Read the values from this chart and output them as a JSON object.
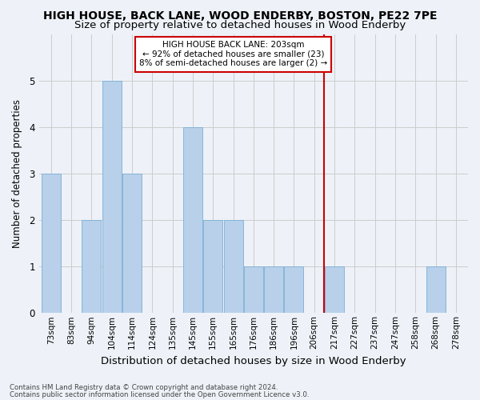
{
  "title": "HIGH HOUSE, BACK LANE, WOOD ENDERBY, BOSTON, PE22 7PE",
  "subtitle": "Size of property relative to detached houses in Wood Enderby",
  "xlabel": "Distribution of detached houses by size in Wood Enderby",
  "ylabel": "Number of detached properties",
  "footnote1": "Contains HM Land Registry data © Crown copyright and database right 2024.",
  "footnote2": "Contains public sector information licensed under the Open Government Licence v3.0.",
  "bins": [
    "73sqm",
    "83sqm",
    "94sqm",
    "104sqm",
    "114sqm",
    "124sqm",
    "135sqm",
    "145sqm",
    "155sqm",
    "165sqm",
    "176sqm",
    "186sqm",
    "196sqm",
    "206sqm",
    "217sqm",
    "227sqm",
    "237sqm",
    "247sqm",
    "258sqm",
    "268sqm",
    "278sqm"
  ],
  "counts": [
    3,
    0,
    2,
    5,
    3,
    0,
    0,
    4,
    2,
    2,
    1,
    1,
    1,
    0,
    1,
    0,
    0,
    0,
    0,
    1,
    0
  ],
  "bar_color": "#b8d0ea",
  "bar_edge_color": "#7aafd4",
  "vline_bin_index": 13,
  "vline_color": "#cc0000",
  "annotation_text": "HIGH HOUSE BACK LANE: 203sqm\n← 92% of detached houses are smaller (23)\n8% of semi-detached houses are larger (2) →",
  "annotation_box_color": "#ffffff",
  "annotation_box_edge": "#cc0000",
  "ylim": [
    0,
    6
  ],
  "yticks": [
    0,
    1,
    2,
    3,
    4,
    5,
    6
  ],
  "grid_color": "#cccccc",
  "bg_color": "#eef2f8",
  "title_fontsize": 10,
  "subtitle_fontsize": 9.5,
  "axis_label_fontsize": 9,
  "tick_fontsize": 7.5,
  "annotation_fontsize": 7.5,
  "ylabel_fontsize": 8.5
}
